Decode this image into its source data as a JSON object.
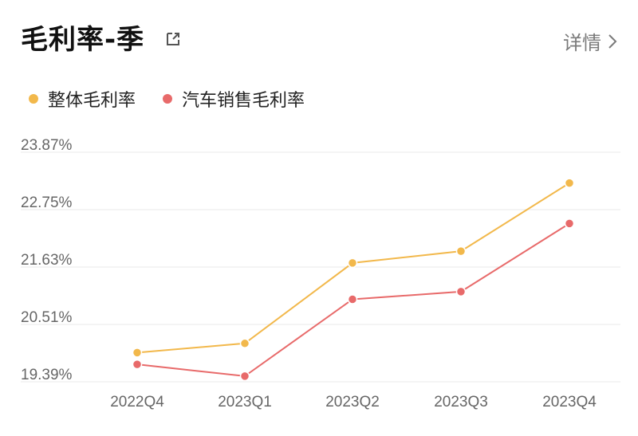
{
  "header": {
    "title": "毛利率-季",
    "detail_label": "详情"
  },
  "icons": {
    "share": "external-link-icon",
    "detail": "chevron-right-icon"
  },
  "colors": {
    "overall": "#F2B84B",
    "auto": "#E86A6A",
    "grid": "#E8E8E8",
    "tick_text": "#666666"
  },
  "chart_data": {
    "type": "line",
    "categories": [
      "2022Q4",
      "2023Q1",
      "2023Q2",
      "2023Q3",
      "2023Q4"
    ],
    "y_ticks": [
      "23.87%",
      "22.75%",
      "21.63%",
      "20.51%",
      "19.39%"
    ],
    "ylim": [
      19.39,
      23.87
    ],
    "series": [
      {
        "name": "整体毛利率",
        "values": [
          19.96,
          20.14,
          21.71,
          21.94,
          23.27
        ]
      },
      {
        "name": "汽车销售毛利率",
        "values": [
          19.73,
          19.5,
          21.0,
          21.15,
          22.48
        ]
      }
    ],
    "grid": true,
    "legend": "top-left"
  }
}
